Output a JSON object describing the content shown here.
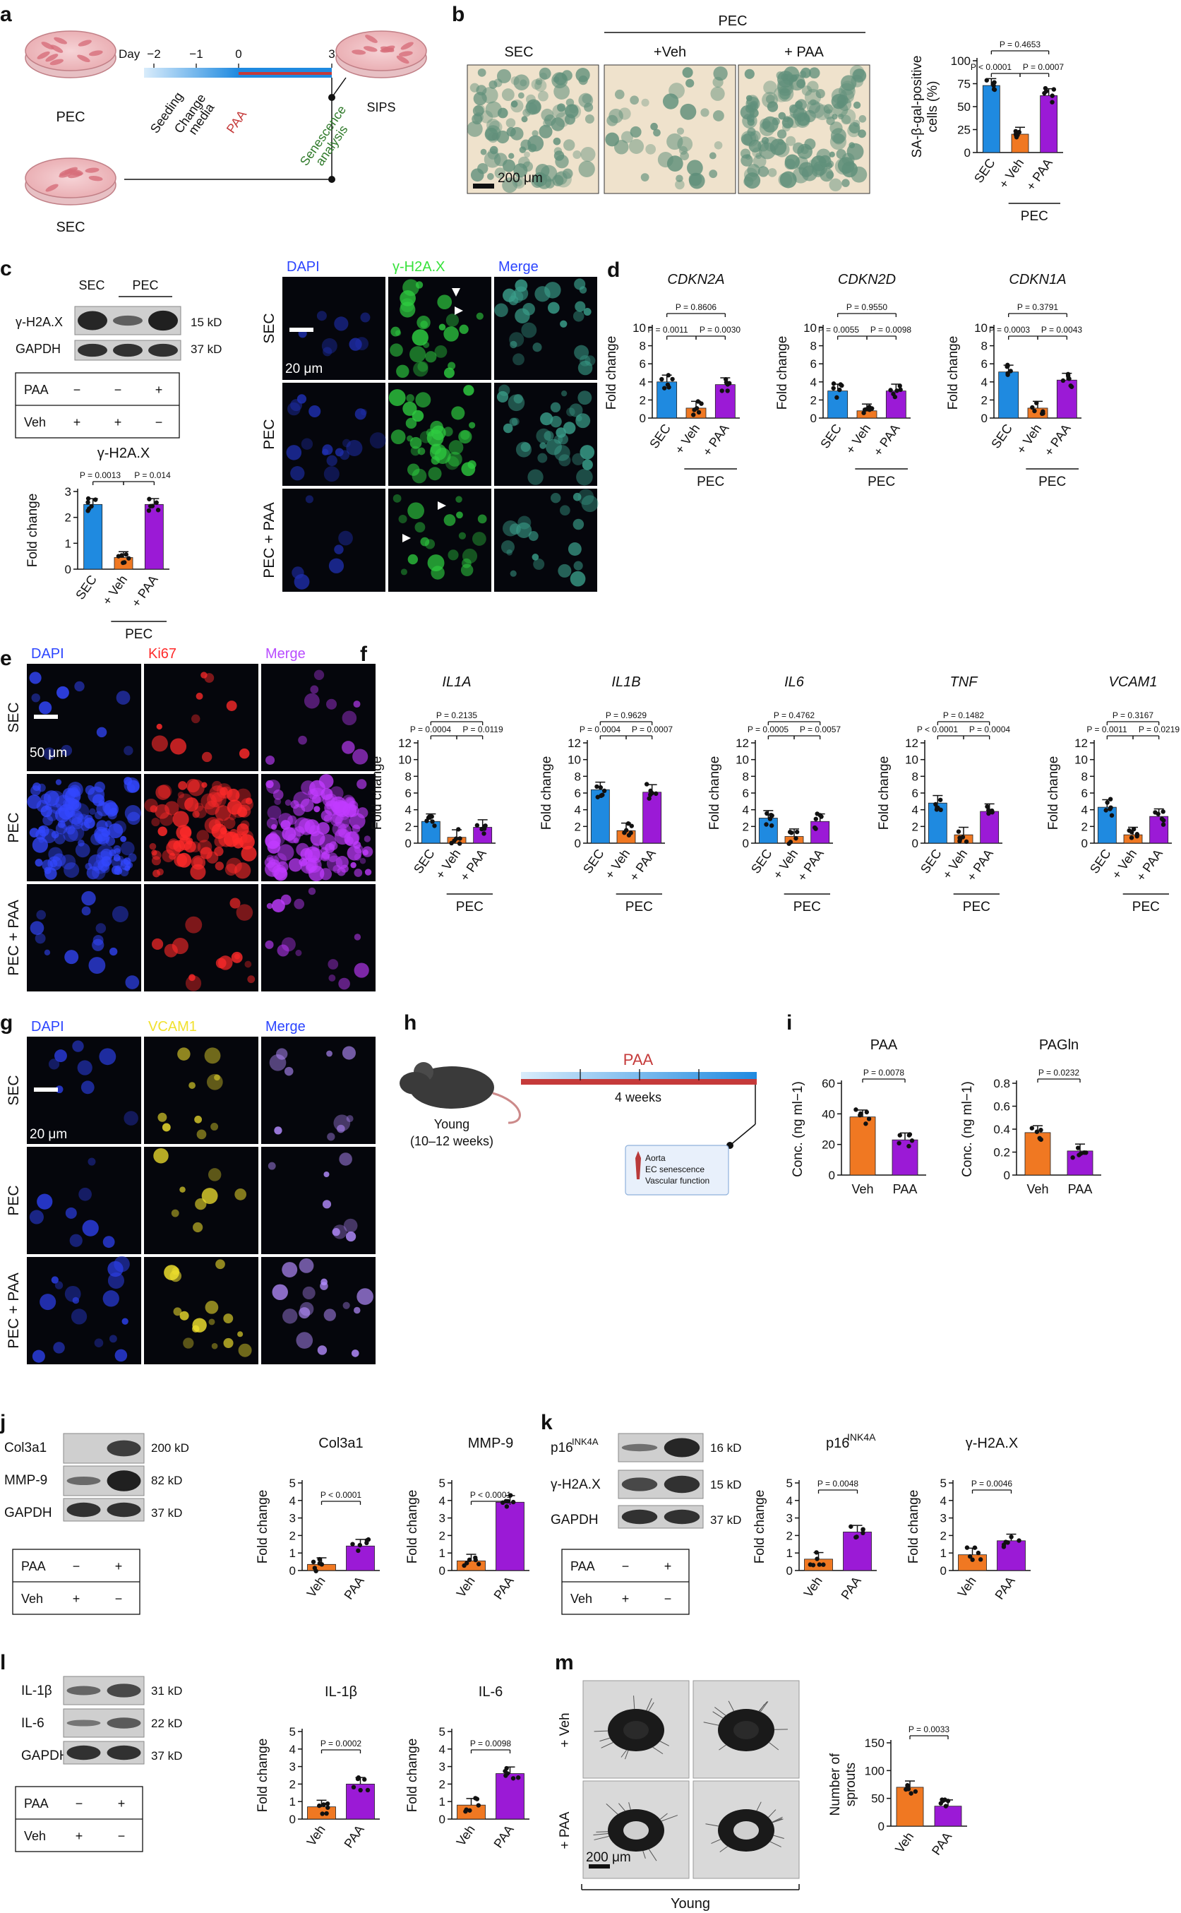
{
  "colors": {
    "sec": "#1f8ae0",
    "veh": "#f07822",
    "paa": "#9b1ad6",
    "paa_line": "#c53a3a",
    "dapi": "#2c45ff",
    "gh2ax": "#36e23a",
    "ki67": "#ff2a2a",
    "vcam1": "#f1e12e",
    "merge": "#b84cff"
  },
  "panel_a": {
    "letter": "a",
    "dish_top": "PEC",
    "dish_right": "SIPS",
    "dish_bottom": "SEC",
    "day_label": "Day",
    "days": [
      "−2",
      "−1",
      "0",
      "3"
    ],
    "steps": [
      "Seeding",
      "Change\nmedia",
      "PAA",
      "Senescence\nanalysis"
    ]
  },
  "panel_b": {
    "letter": "b",
    "group_header": "PEC",
    "micro_labels": [
      "SEC",
      "+Veh",
      "+ PAA"
    ],
    "scale_bar": "200 μm",
    "chart": {
      "ylabel": "SA-β-gal-positive\ncells (%)",
      "yticks": [
        "0",
        "25",
        "50",
        "75",
        "100"
      ],
      "xlabels": [
        "SEC",
        "+ Veh",
        "+ PAA"
      ],
      "group": "PEC",
      "pvals": [
        "P = 0.4653",
        "P < 0.0001",
        "P = 0.0007"
      ]
    }
  },
  "panel_c": {
    "letter": "c",
    "blot_headers": [
      "SEC",
      "PEC"
    ],
    "blot_labels": [
      "γ-H2A.X",
      "GAPDH"
    ],
    "blot_kd": [
      "15 kD",
      "37 kD"
    ],
    "treat_rows": [
      {
        "name": "PAA",
        "vals": [
          "−",
          "−",
          "+"
        ]
      },
      {
        "name": "Veh",
        "vals": [
          "+",
          "+",
          "−"
        ]
      }
    ],
    "chart": {
      "title": "γ-H2A.X",
      "ylabel": "Fold change",
      "yticks": [
        "0",
        "1",
        "2",
        "3"
      ],
      "xlabels": [
        "SEC",
        "+ Veh",
        "+ PAA"
      ],
      "group": "PEC",
      "pvals": [
        "P = 0.0013",
        "P = 0.014"
      ]
    },
    "img_cols": [
      "DAPI",
      "γ-H2A.X",
      "Merge"
    ],
    "img_rows": [
      "SEC",
      "PEC",
      "PEC + PAA"
    ],
    "scale_bar": "20 μm"
  },
  "panel_d": {
    "letter": "d",
    "charts": [
      {
        "title": "CDKN2A",
        "pvals": [
          "P = 0.8606",
          "P = 0.0011",
          "P = 0.0030"
        ]
      },
      {
        "title": "CDKN2D",
        "pvals": [
          "P = 0.9550",
          "P = 0.0055",
          "P = 0.0098"
        ]
      },
      {
        "title": "CDKN1A",
        "pvals": [
          "P = 0.3791",
          "P = 0.0003",
          "P = 0.0043"
        ]
      }
    ],
    "ylabel": "Fold change",
    "yticks": [
      "0",
      "2",
      "4",
      "6",
      "8",
      "10"
    ],
    "xlabels": [
      "SEC",
      "+ Veh",
      "+ PAA"
    ],
    "group": "PEC"
  },
  "panel_e": {
    "letter": "e",
    "img_cols": [
      "DAPI",
      "Ki67",
      "Merge"
    ],
    "img_rows": [
      "SEC",
      "PEC",
      "PEC + PAA"
    ],
    "scale_bar": "50 μm"
  },
  "panel_f": {
    "letter": "f",
    "charts": [
      {
        "title": "IL1A",
        "pvals": [
          "P = 0.2135",
          "P = 0.0004",
          "P = 0.0119"
        ]
      },
      {
        "title": "IL1B",
        "pvals": [
          "P = 0.9629",
          "P = 0.0004",
          "P = 0.0007"
        ]
      },
      {
        "title": "IL6",
        "pvals": [
          "P = 0.4762",
          "P = 0.0005",
          "P = 0.0057"
        ]
      },
      {
        "title": "TNF",
        "pvals": [
          "P = 0.1482",
          "P < 0.0001",
          "P = 0.0004"
        ]
      },
      {
        "title": "VCAM1",
        "pvals": [
          "P = 0.3167",
          "P = 0.0011",
          "P = 0.0219"
        ]
      }
    ],
    "ylabel": "Fold change",
    "yticks": [
      "0",
      "2",
      "4",
      "6",
      "8",
      "10",
      "12"
    ],
    "xlabels": [
      "SEC",
      "+ Veh",
      "+ PAA"
    ],
    "group": "PEC"
  },
  "panel_g": {
    "letter": "g",
    "img_cols": [
      "DAPI",
      "VCAM1",
      "Merge"
    ],
    "img_rows": [
      "SEC",
      "PEC",
      "PEC + PAA"
    ],
    "scale_bar": "20 μm"
  },
  "panel_h": {
    "letter": "h",
    "mouse_label": "Young\n(10–12 weeks)",
    "treatment": "PAA",
    "duration": "4 weeks",
    "endpoints": [
      "Aorta",
      "EC senescence",
      "Vascular function"
    ]
  },
  "panel_i": {
    "letter": "i",
    "ylabel": "Conc. (ng ml−1)",
    "charts": [
      {
        "title": "PAA",
        "yticks": [
          "0",
          "20",
          "40",
          "60"
        ],
        "pval": "P = 0.0078"
      },
      {
        "title": "PAGln",
        "yticks": [
          "0",
          "0.2",
          "0.4",
          "0.6",
          "0.8"
        ],
        "pval": "P = 0.0232"
      }
    ],
    "xlabels": [
      "Veh",
      "PAA"
    ]
  },
  "panel_j": {
    "letter": "j",
    "blot_labels": [
      "Col3a1",
      "MMP-9",
      "GAPDH"
    ],
    "blot_kd": [
      "200 kD",
      "82 kD",
      "37 kD"
    ],
    "treat_rows": [
      {
        "name": "PAA",
        "vals": [
          "−",
          "+"
        ]
      },
      {
        "name": "Veh",
        "vals": [
          "+",
          "−"
        ]
      }
    ],
    "charts": [
      {
        "title": "Col3a1",
        "yticks": [
          "0",
          "1",
          "2",
          "3",
          "4",
          "5"
        ],
        "pval": "P < 0.0001"
      },
      {
        "title": "MMP-9",
        "yticks": [
          "0",
          "1",
          "2",
          "3",
          "4",
          "5"
        ],
        "pval": "P < 0.0001"
      }
    ],
    "ylabel": "Fold change",
    "xlabels": [
      "Veh",
      "PAA"
    ]
  },
  "panel_k": {
    "letter": "k",
    "blot_labels": [
      "p16INK4A",
      "γ-H2A.X",
      "GAPDH"
    ],
    "blot_kd": [
      "16 kD",
      "15 kD",
      "37 kD"
    ],
    "treat_rows": [
      {
        "name": "PAA",
        "vals": [
          "−",
          "+"
        ]
      },
      {
        "name": "Veh",
        "vals": [
          "+",
          "−"
        ]
      }
    ],
    "charts": [
      {
        "title": "p16INK4A",
        "yticks": [
          "0",
          "1",
          "2",
          "3",
          "4",
          "5"
        ],
        "pval": "P = 0.0048"
      },
      {
        "title": "γ-H2A.X",
        "yticks": [
          "0",
          "1",
          "2",
          "3",
          "4",
          "5"
        ],
        "pval": "P = 0.0046"
      }
    ],
    "ylabel": "Fold change",
    "xlabels": [
      "Veh",
      "PAA"
    ]
  },
  "panel_l": {
    "letter": "l",
    "blot_labels": [
      "IL-1β",
      "IL-6",
      "GAPDH"
    ],
    "blot_kd": [
      "31 kD",
      "22 kD",
      "37 kD"
    ],
    "treat_rows": [
      {
        "name": "PAA",
        "vals": [
          "−",
          "+"
        ]
      },
      {
        "name": "Veh",
        "vals": [
          "+",
          "−"
        ]
      }
    ],
    "charts": [
      {
        "title": "IL-1β",
        "yticks": [
          "0",
          "1",
          "2",
          "3",
          "4",
          "5"
        ],
        "pval": "P = 0.0002"
      },
      {
        "title": "IL-6",
        "yticks": [
          "0",
          "1",
          "2",
          "3",
          "4",
          "5"
        ],
        "pval": "P = 0.0098"
      }
    ],
    "ylabel": "Fold change",
    "xlabels": [
      "Veh",
      "PAA"
    ]
  },
  "panel_m": {
    "letter": "m",
    "row_labels": [
      "+ Veh",
      "+ PAA"
    ],
    "scale_bar": "200 μm",
    "group": "Young",
    "chart": {
      "ylabel": "Number of\nsprouts",
      "yticks": [
        "0",
        "50",
        "100",
        "150"
      ],
      "xlabels": [
        "Veh",
        "PAA"
      ],
      "pval": "P = 0.0033"
    }
  },
  "chart_data": [
    {
      "type": "bar",
      "id": "b",
      "title": "",
      "ylabel": "SA-β-gal-positive cells (%)",
      "categories": [
        "SEC",
        "PEC + Veh",
        "PEC + PAA"
      ],
      "values": [
        73,
        20,
        62
      ],
      "ylim": [
        0,
        100
      ]
    },
    {
      "type": "bar",
      "id": "c",
      "title": "γ-H2A.X",
      "ylabel": "Fold change",
      "categories": [
        "SEC",
        "PEC + Veh",
        "PEC + PAA"
      ],
      "values": [
        2.5,
        0.45,
        2.5
      ],
      "ylim": [
        0,
        3
      ]
    },
    {
      "type": "bar",
      "id": "d1",
      "title": "CDKN2A",
      "ylabel": "Fold change",
      "categories": [
        "SEC",
        "PEC + Veh",
        "PEC + PAA"
      ],
      "values": [
        4.0,
        1.1,
        3.7
      ],
      "ylim": [
        0,
        10
      ]
    },
    {
      "type": "bar",
      "id": "d2",
      "title": "CDKN2D",
      "ylabel": "Fold change",
      "categories": [
        "SEC",
        "PEC + Veh",
        "PEC + PAA"
      ],
      "values": [
        3.0,
        0.8,
        3.0
      ],
      "ylim": [
        0,
        10
      ]
    },
    {
      "type": "bar",
      "id": "d3",
      "title": "CDKN1A",
      "ylabel": "Fold change",
      "categories": [
        "SEC",
        "PEC + Veh",
        "PEC + PAA"
      ],
      "values": [
        5.1,
        1.1,
        4.2
      ],
      "ylim": [
        0,
        10
      ]
    },
    {
      "type": "bar",
      "id": "f1",
      "title": "IL1A",
      "ylabel": "Fold change",
      "categories": [
        "SEC",
        "PEC + Veh",
        "PEC + PAA"
      ],
      "values": [
        2.6,
        0.7,
        1.9
      ],
      "ylim": [
        0,
        12
      ]
    },
    {
      "type": "bar",
      "id": "f2",
      "title": "IL1B",
      "ylabel": "Fold change",
      "categories": [
        "SEC",
        "PEC + Veh",
        "PEC + PAA"
      ],
      "values": [
        6.4,
        1.5,
        6.1
      ],
      "ylim": [
        0,
        12
      ]
    },
    {
      "type": "bar",
      "id": "f3",
      "title": "IL6",
      "ylabel": "Fold change",
      "categories": [
        "SEC",
        "PEC + Veh",
        "PEC + PAA"
      ],
      "values": [
        3.0,
        0.8,
        2.6
      ],
      "ylim": [
        0,
        12
      ]
    },
    {
      "type": "bar",
      "id": "f4",
      "title": "TNF",
      "ylabel": "Fold change",
      "categories": [
        "SEC",
        "PEC + Veh",
        "PEC + PAA"
      ],
      "values": [
        4.8,
        1.0,
        3.8
      ],
      "ylim": [
        0,
        12
      ]
    },
    {
      "type": "bar",
      "id": "f5",
      "title": "VCAM1",
      "ylabel": "Fold change",
      "categories": [
        "SEC",
        "PEC + Veh",
        "PEC + PAA"
      ],
      "values": [
        4.3,
        1.0,
        3.2
      ],
      "ylim": [
        0,
        12
      ]
    },
    {
      "type": "bar",
      "id": "i1",
      "title": "PAA",
      "ylabel": "Conc. (ng ml−1)",
      "categories": [
        "Veh",
        "PAA"
      ],
      "values": [
        38,
        23
      ],
      "ylim": [
        0,
        60
      ]
    },
    {
      "type": "bar",
      "id": "i2",
      "title": "PAGln",
      "ylabel": "Conc. (ng ml−1)",
      "categories": [
        "Veh",
        "PAA"
      ],
      "values": [
        0.37,
        0.21
      ],
      "ylim": [
        0,
        0.8
      ]
    },
    {
      "type": "bar",
      "id": "j1",
      "title": "Col3a1",
      "ylabel": "Fold change",
      "categories": [
        "Veh",
        "PAA"
      ],
      "values": [
        0.35,
        1.4
      ],
      "ylim": [
        0,
        5
      ]
    },
    {
      "type": "bar",
      "id": "j2",
      "title": "MMP-9",
      "ylabel": "Fold change",
      "categories": [
        "Veh",
        "PAA"
      ],
      "values": [
        0.55,
        3.9
      ],
      "ylim": [
        0,
        5
      ]
    },
    {
      "type": "bar",
      "id": "k1",
      "title": "p16INK4A",
      "ylabel": "Fold change",
      "categories": [
        "Veh",
        "PAA"
      ],
      "values": [
        0.65,
        2.2
      ],
      "ylim": [
        0,
        5
      ]
    },
    {
      "type": "bar",
      "id": "k2",
      "title": "γ-H2A.X",
      "ylabel": "Fold change",
      "categories": [
        "Veh",
        "PAA"
      ],
      "values": [
        0.9,
        1.7
      ],
      "ylim": [
        0,
        5
      ]
    },
    {
      "type": "bar",
      "id": "l1",
      "title": "IL-1β",
      "ylabel": "Fold change",
      "categories": [
        "Veh",
        "PAA"
      ],
      "values": [
        0.7,
        2.0
      ],
      "ylim": [
        0,
        5
      ]
    },
    {
      "type": "bar",
      "id": "l2",
      "title": "IL-6",
      "ylabel": "Fold change",
      "categories": [
        "Veh",
        "PAA"
      ],
      "values": [
        0.8,
        2.6
      ],
      "ylim": [
        0,
        5
      ]
    },
    {
      "type": "bar",
      "id": "m",
      "title": "",
      "ylabel": "Number of sprouts",
      "categories": [
        "Veh",
        "PAA"
      ],
      "values": [
        70,
        36
      ],
      "ylim": [
        0,
        150
      ]
    }
  ]
}
